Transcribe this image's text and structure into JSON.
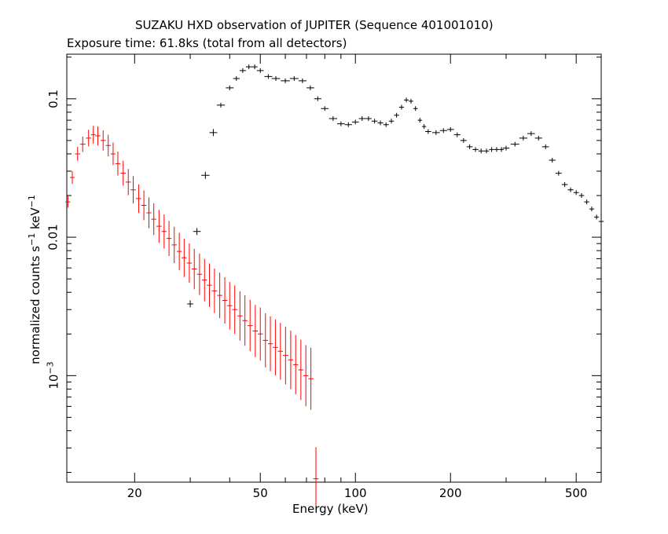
{
  "chart_data": {
    "type": "scatter",
    "title": "SUZAKU HXD observation of JUPITER (Sequence 401001010)",
    "subtitle": "Exposure time: 61.8ks (total from all detectors)",
    "xlabel": "Energy (keV)",
    "ylabel": "normalized counts s^-1 keV^-1",
    "x_scale": "log",
    "y_scale": "log",
    "xlim": [
      12.2,
      600
    ],
    "ylim": [
      0.00017,
      0.21
    ],
    "x_tick_labels": [
      "20",
      "50",
      "100",
      "200",
      "500"
    ],
    "x_ticks": [
      20,
      50,
      100,
      200,
      500
    ],
    "y_tick_labels": [
      "0.1",
      "0.01",
      "10^-3"
    ],
    "y_ticks": [
      0.1,
      0.01,
      0.001
    ],
    "grid": false,
    "series": [
      {
        "color": "#ff0000",
        "x": [
          12.3,
          12.7,
          13.2,
          13.7,
          14.3,
          14.8,
          15.3,
          15.9,
          16.5,
          17.1,
          17.7,
          18.4,
          19.1,
          19.8,
          20.6,
          21.4,
          22.2,
          23.0,
          23.9,
          24.8,
          25.7,
          26.7,
          27.7,
          28.7,
          29.8,
          30.9,
          32.1,
          33.3,
          34.5,
          35.8,
          37.2,
          38.6,
          40.0,
          41.5,
          43.1,
          44.7,
          46.4,
          48.2,
          50.0,
          51.9,
          53.8,
          55.8,
          57.9,
          60.1,
          62.4,
          64.7,
          67.2,
          69.7,
          72.3,
          75.0
        ],
        "y": [
          0.018,
          0.027,
          0.04,
          0.047,
          0.052,
          0.055,
          0.054,
          0.05,
          0.046,
          0.04,
          0.034,
          0.029,
          0.025,
          0.022,
          0.019,
          0.017,
          0.015,
          0.0135,
          0.012,
          0.011,
          0.0098,
          0.0088,
          0.0079,
          0.0071,
          0.0065,
          0.0059,
          0.0054,
          0.0049,
          0.0045,
          0.0041,
          0.0038,
          0.0035,
          0.0032,
          0.003,
          0.0027,
          0.0025,
          0.0023,
          0.0021,
          0.002,
          0.0018,
          0.0017,
          0.0016,
          0.0015,
          0.0014,
          0.0013,
          0.0012,
          0.0011,
          0.001,
          0.00095,
          0.00018
        ]
      },
      {
        "color": "#000000",
        "x": [
          30,
          31.5,
          33.5,
          35.5,
          37.5,
          40,
          42,
          44,
          46,
          48,
          50,
          53,
          56,
          60,
          64,
          68,
          72,
          76,
          80,
          85,
          90,
          95,
          100,
          105,
          110,
          115,
          120,
          125,
          130,
          135,
          140,
          145,
          150,
          155,
          160,
          165,
          170,
          180,
          190,
          200,
          210,
          220,
          230,
          240,
          250,
          260,
          270,
          280,
          290,
          300,
          320,
          340,
          360,
          380,
          400,
          420,
          440,
          460,
          480,
          500,
          520,
          540,
          560,
          580,
          600
        ],
        "y": [
          0.0033,
          0.011,
          0.028,
          0.057,
          0.09,
          0.12,
          0.14,
          0.16,
          0.17,
          0.17,
          0.16,
          0.145,
          0.14,
          0.135,
          0.14,
          0.135,
          0.12,
          0.1,
          0.085,
          0.072,
          0.066,
          0.065,
          0.068,
          0.072,
          0.072,
          0.069,
          0.067,
          0.065,
          0.069,
          0.076,
          0.087,
          0.098,
          0.096,
          0.085,
          0.07,
          0.063,
          0.058,
          0.057,
          0.059,
          0.06,
          0.055,
          0.05,
          0.045,
          0.043,
          0.042,
          0.042,
          0.043,
          0.043,
          0.043,
          0.044,
          0.047,
          0.052,
          0.056,
          0.052,
          0.045,
          0.036,
          0.029,
          0.024,
          0.022,
          0.021,
          0.02,
          0.018,
          0.016,
          0.014,
          0.013
        ]
      }
    ]
  }
}
